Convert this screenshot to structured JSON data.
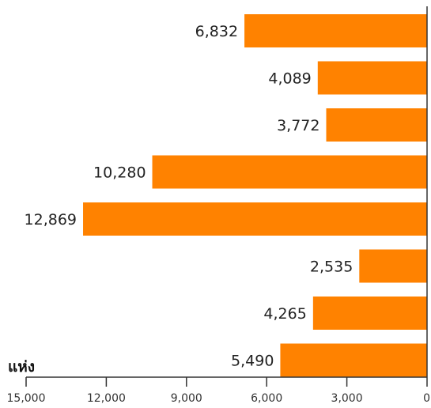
{
  "chart_data": {
    "type": "bar",
    "orientation": "horizontal",
    "direction": "right-to-left",
    "values": [
      6832,
      4089,
      3772,
      10280,
      12869,
      2535,
      4265,
      5490
    ],
    "value_labels": [
      "6,832",
      "4,089",
      "3,772",
      "10,280",
      "12,869",
      "2,535",
      "4,265",
      "5,490"
    ],
    "xlim": [
      0,
      15000
    ],
    "x_ticks": [
      15000,
      12000,
      9000,
      6000,
      3000,
      0
    ],
    "x_tick_labels": [
      "15,000",
      "12,000",
      "9,000",
      "6,000",
      "3,000",
      "0"
    ],
    "unit_label": "แห่ง",
    "bar_color": "#FF8200",
    "grid": false,
    "legend": "none"
  }
}
